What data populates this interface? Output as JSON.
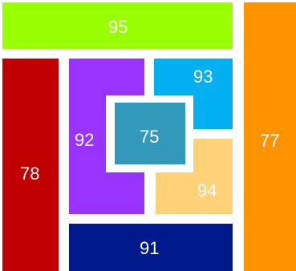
{
  "blocks": {
    "top": {
      "label": "95",
      "color": "#99ff00"
    },
    "left": {
      "label": "78",
      "color": "#c00000"
    },
    "right": {
      "label": "77",
      "color": "#ff9400"
    },
    "purple": {
      "label": "92",
      "color": "#9933ff"
    },
    "skyblue": {
      "label": "93",
      "color": "#00b0f0"
    },
    "center": {
      "label": "75",
      "color": "#3399bb"
    },
    "peach": {
      "label": "94",
      "color": "#ffd27a"
    },
    "bottom": {
      "label": "91",
      "color": "#001a8c"
    }
  }
}
